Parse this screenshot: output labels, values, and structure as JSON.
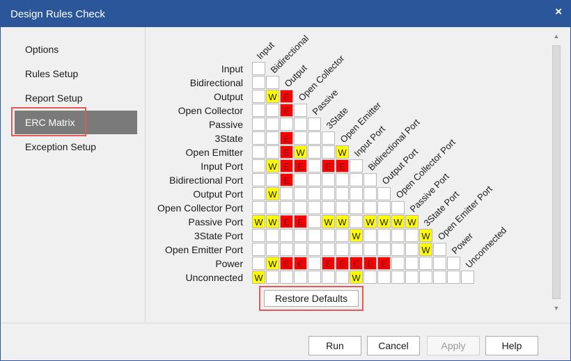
{
  "window": {
    "title": "Design Rules Check",
    "close_glyph": "×"
  },
  "sidebar": {
    "items": [
      {
        "label": "Options"
      },
      {
        "label": "Rules Setup"
      },
      {
        "label": "Report Setup"
      },
      {
        "label": "ERC Matrix",
        "selected": true
      },
      {
        "label": "Exception Setup"
      }
    ]
  },
  "matrix": {
    "pin_types": [
      "Input",
      "Bidirectional",
      "Output",
      "Open Collector",
      "Passive",
      "3State",
      "Open Emitter",
      "Input Port",
      "Bidirectional Port",
      "Output Port",
      "Open Collector Port",
      "Passive Port",
      "3State Port",
      "Open Emitter Port",
      "Power",
      "Unconnected"
    ],
    "rows": [
      [
        ""
      ],
      [
        "",
        ""
      ],
      [
        "",
        "W",
        "E"
      ],
      [
        "",
        "",
        "E",
        ""
      ],
      [
        "",
        "",
        "",
        "",
        ""
      ],
      [
        "",
        "",
        "E",
        "",
        "",
        ""
      ],
      [
        "",
        "",
        "E",
        "W",
        "",
        "",
        "W"
      ],
      [
        "",
        "W",
        "E",
        "E",
        "",
        "E",
        "E",
        ""
      ],
      [
        "",
        "",
        "E",
        "",
        "",
        "",
        "",
        "",
        ""
      ],
      [
        "",
        "W",
        "",
        "",
        "",
        "",
        "",
        "",
        "",
        ""
      ],
      [
        "",
        "",
        "",
        "",
        "",
        "",
        "",
        "",
        "",
        "",
        ""
      ],
      [
        "W",
        "W",
        "E",
        "E",
        "",
        "W",
        "W",
        "",
        "W",
        "W",
        "W",
        "W"
      ],
      [
        "",
        "",
        "",
        "",
        "",
        "",
        "",
        "W",
        "",
        "",
        "",
        "",
        "W"
      ],
      [
        "",
        "",
        "",
        "",
        "",
        "",
        "",
        "",
        "",
        "",
        "",
        "",
        "W",
        ""
      ],
      [
        "",
        "W",
        "E",
        "E",
        "",
        "E",
        "E",
        "E",
        "E",
        "E",
        "",
        "",
        "",
        "",
        ""
      ],
      [
        "W",
        "",
        "",
        "",
        "",
        "",
        "",
        "W",
        "",
        "",
        "",
        "",
        "",
        "",
        "",
        ""
      ]
    ],
    "legend_colors": {
      "W": "#ffff00",
      "E": "#ff0000",
      "empty": "#ffffff"
    },
    "restore_label": "Restore Defaults"
  },
  "footer": {
    "run_label": "Run",
    "cancel_label": "Cancel",
    "apply_label": "Apply",
    "apply_enabled": false,
    "help_label": "Help"
  },
  "colors": {
    "titlebar": "#2b579a",
    "selected_nav": "#7a7a7a",
    "highlight_box": "#e05a5a"
  }
}
